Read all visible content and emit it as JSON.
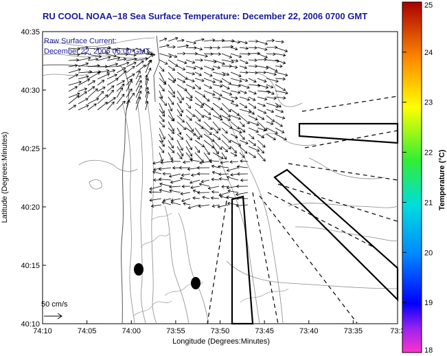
{
  "title": "RU COOL  NOAA−18  Sea Surface Temperature:  December 22, 2006 0700 GMT",
  "annotation": {
    "line1": "Raw Surface Current:",
    "line2": "December 22, 2006 06:00 GMT"
  },
  "scale_label": "50 cm/s",
  "axes": {
    "xlabel": "Longitude (Degrees:Minutes)",
    "ylabel": "Latitude (Degrees:Minutes)",
    "xticks": [
      "74:10",
      "74:05",
      "74:00",
      "73:55",
      "73:50",
      "73:45",
      "73:40",
      "73:35",
      "73:3"
    ],
    "yticks": [
      "40:35",
      "40:30",
      "40:25",
      "40:20",
      "40:15",
      "40:10"
    ]
  },
  "colorbar": {
    "label": "Temperature (°C)",
    "ticks": [
      "25",
      "24",
      "23",
      "22",
      "21",
      "20",
      "19",
      "18"
    ],
    "min": 18,
    "max": 25
  },
  "colors": {
    "title_blue": "#1a1a9a",
    "contour_gray": "#888888",
    "vector_black": "#000000"
  }
}
